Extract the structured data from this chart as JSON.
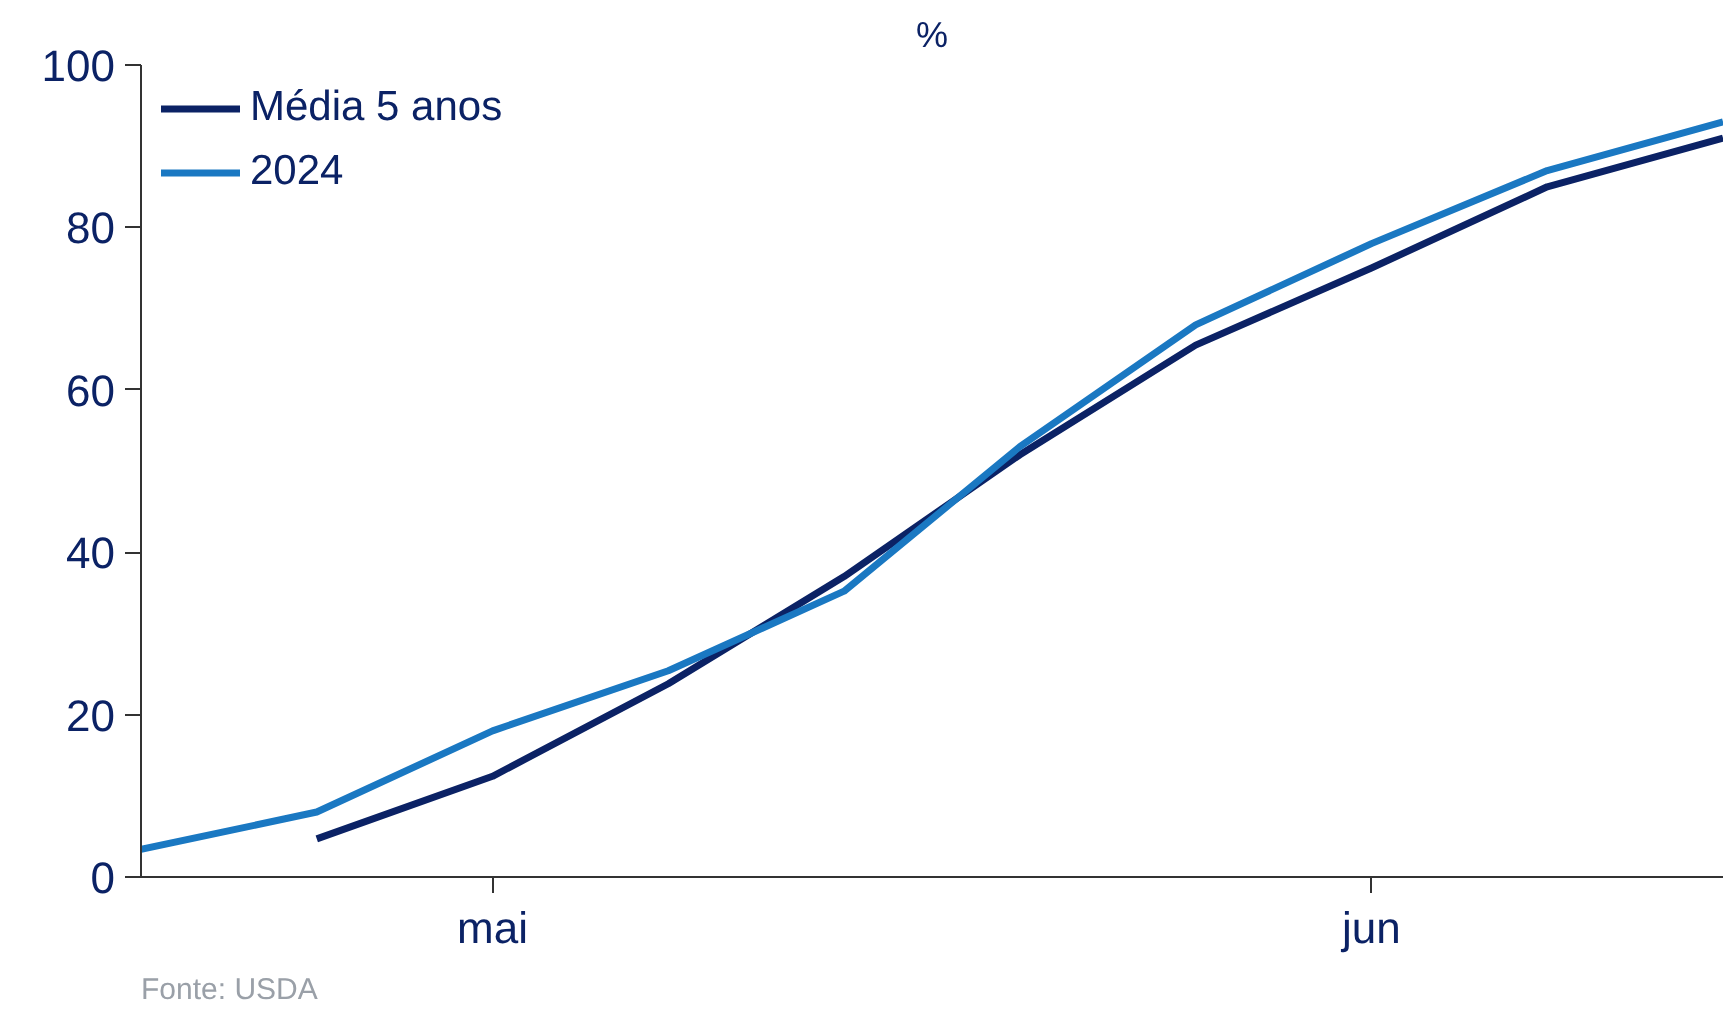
{
  "chart_data": {
    "type": "line",
    "title": "%",
    "annotations": [
      "Fonte: USDA"
    ],
    "categories": [
      null,
      null,
      "mai",
      null,
      null,
      null,
      null,
      "jun",
      null,
      null
    ],
    "series": [
      {
        "name": "Média 5 anos",
        "color": "#0b2265",
        "values": [
          null,
          4.7,
          12.4,
          23.8,
          37,
          52,
          65.5,
          75,
          85,
          91
        ]
      },
      {
        "name": "2024",
        "color": "#1a78c2",
        "values": [
          3.4,
          8,
          18,
          25.4,
          35.2,
          53,
          68,
          78,
          87,
          93
        ]
      }
    ],
    "ylim": [
      0,
      100
    ],
    "yticks": [
      0,
      20,
      40,
      60,
      80,
      100
    ],
    "grid": false,
    "legend": "top left",
    "line_style": "solid",
    "marker": "none"
  }
}
